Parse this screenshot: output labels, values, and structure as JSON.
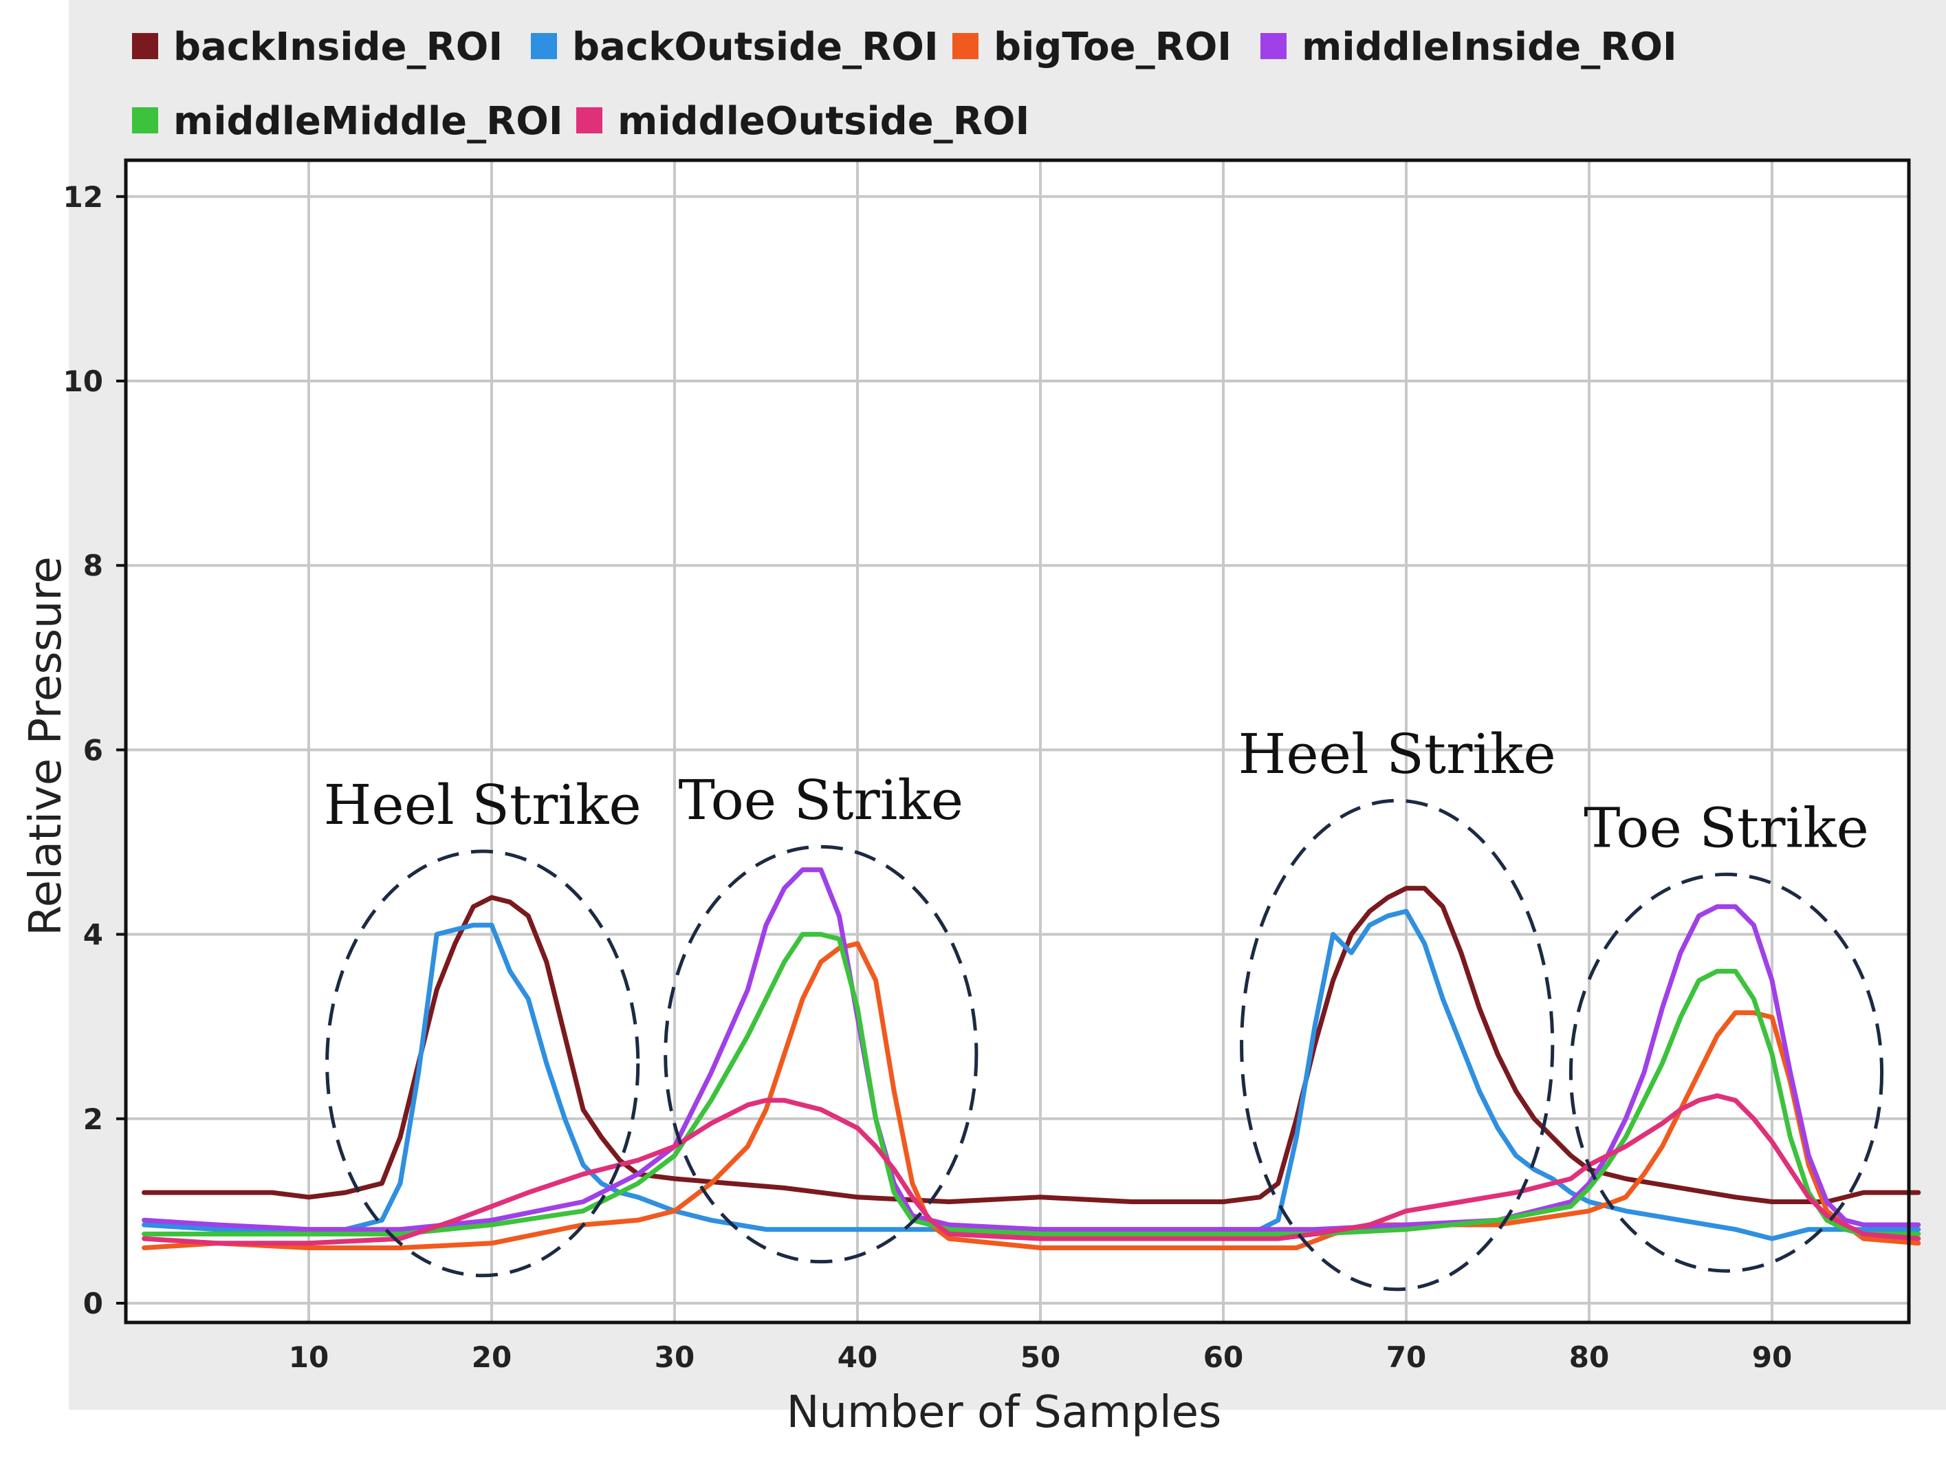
{
  "chart_data": {
    "type": "line",
    "title": "",
    "xlabel": "Number of Samples",
    "ylabel": "Relative Pressure",
    "xlim": [
      0,
      98
    ],
    "ylim": [
      0,
      12.2
    ],
    "xticks": [
      10,
      20,
      30,
      40,
      50,
      60,
      70,
      80,
      90
    ],
    "yticks": [
      0,
      2,
      4,
      6,
      8,
      10,
      12
    ],
    "grid": true,
    "legend_position": "top",
    "series": [
      {
        "name": "backInside_ROI",
        "color": "#7a1a1e",
        "x": [
          1,
          5,
          8,
          10,
          12,
          14,
          15,
          16,
          17,
          18,
          19,
          20,
          21,
          22,
          23,
          24,
          25,
          26,
          27,
          28,
          30,
          33,
          36,
          40,
          45,
          50,
          55,
          60,
          62,
          63,
          64,
          65,
          66,
          67,
          68,
          69,
          70,
          71,
          72,
          73,
          74,
          75,
          76,
          77,
          78,
          79,
          80,
          82,
          85,
          88,
          90,
          93,
          95,
          98
        ],
        "y": [
          1.2,
          1.2,
          1.2,
          1.15,
          1.2,
          1.3,
          1.8,
          2.6,
          3.4,
          3.9,
          4.3,
          4.4,
          4.35,
          4.2,
          3.7,
          2.9,
          2.1,
          1.8,
          1.55,
          1.4,
          1.35,
          1.3,
          1.25,
          1.15,
          1.1,
          1.15,
          1.1,
          1.1,
          1.15,
          1.3,
          2.0,
          2.8,
          3.5,
          4.0,
          4.25,
          4.4,
          4.5,
          4.5,
          4.3,
          3.8,
          3.2,
          2.7,
          2.3,
          2.0,
          1.8,
          1.6,
          1.45,
          1.35,
          1.25,
          1.15,
          1.1,
          1.1,
          1.2,
          1.2
        ]
      },
      {
        "name": "backOutside_ROI",
        "color": "#2f8fe0",
        "x": [
          1,
          5,
          8,
          12,
          14,
          15,
          16,
          17,
          18,
          19,
          20,
          21,
          22,
          23,
          24,
          25,
          26,
          27,
          28,
          30,
          32,
          35,
          40,
          45,
          50,
          55,
          60,
          62,
          63,
          64,
          65,
          66,
          67,
          68,
          69,
          70,
          71,
          72,
          73,
          74,
          75,
          76,
          77,
          78,
          79,
          80,
          82,
          85,
          88,
          90,
          92,
          95,
          98
        ],
        "y": [
          0.85,
          0.8,
          0.8,
          0.8,
          0.9,
          1.3,
          2.5,
          4.0,
          4.05,
          4.1,
          4.1,
          3.6,
          3.3,
          2.6,
          2.0,
          1.5,
          1.3,
          1.2,
          1.15,
          1.0,
          0.9,
          0.8,
          0.8,
          0.8,
          0.8,
          0.8,
          0.8,
          0.8,
          0.9,
          1.8,
          3.0,
          4.0,
          3.8,
          4.1,
          4.2,
          4.25,
          3.9,
          3.3,
          2.8,
          2.3,
          1.9,
          1.6,
          1.45,
          1.35,
          1.2,
          1.1,
          1.0,
          0.9,
          0.8,
          0.7,
          0.8,
          0.8,
          0.8
        ]
      },
      {
        "name": "bigToe_ROI",
        "color": "#f05a1e",
        "x": [
          1,
          5,
          10,
          15,
          20,
          25,
          28,
          30,
          32,
          34,
          35,
          36,
          37,
          38,
          39,
          40,
          41,
          42,
          43,
          44,
          45,
          50,
          55,
          60,
          64,
          66,
          68,
          70,
          75,
          80,
          82,
          83,
          84,
          85,
          86,
          87,
          88,
          89,
          90,
          91,
          92,
          93,
          95,
          98
        ],
        "y": [
          0.6,
          0.65,
          0.6,
          0.6,
          0.65,
          0.85,
          0.9,
          1.0,
          1.3,
          1.7,
          2.1,
          2.7,
          3.3,
          3.7,
          3.85,
          3.9,
          3.5,
          2.3,
          1.3,
          0.85,
          0.7,
          0.6,
          0.6,
          0.6,
          0.6,
          0.75,
          0.85,
          0.85,
          0.85,
          1.0,
          1.15,
          1.4,
          1.7,
          2.1,
          2.5,
          2.9,
          3.15,
          3.15,
          3.1,
          2.4,
          1.5,
          1.0,
          0.7,
          0.65
        ]
      },
      {
        "name": "middleInside_ROI",
        "color": "#a040e8",
        "x": [
          1,
          5,
          10,
          15,
          20,
          25,
          28,
          30,
          32,
          34,
          35,
          36,
          37,
          38,
          39,
          40,
          41,
          42,
          43,
          44,
          45,
          50,
          55,
          60,
          65,
          70,
          75,
          79,
          80,
          81,
          82,
          83,
          84,
          85,
          86,
          87,
          88,
          89,
          90,
          91,
          92,
          93,
          94,
          95,
          98
        ],
        "y": [
          0.9,
          0.85,
          0.8,
          0.8,
          0.9,
          1.1,
          1.4,
          1.7,
          2.5,
          3.4,
          4.1,
          4.5,
          4.7,
          4.7,
          4.2,
          3.1,
          2.0,
          1.3,
          0.95,
          0.9,
          0.85,
          0.8,
          0.8,
          0.8,
          0.8,
          0.85,
          0.9,
          1.1,
          1.3,
          1.6,
          2.0,
          2.5,
          3.2,
          3.8,
          4.2,
          4.3,
          4.3,
          4.1,
          3.5,
          2.5,
          1.6,
          1.1,
          0.9,
          0.85,
          0.85
        ]
      },
      {
        "name": "middleMiddle_ROI",
        "color": "#3cc23c",
        "x": [
          1,
          5,
          10,
          15,
          20,
          25,
          28,
          30,
          32,
          34,
          35,
          36,
          37,
          38,
          39,
          40,
          41,
          42,
          43,
          44,
          45,
          50,
          55,
          60,
          65,
          70,
          75,
          79,
          80,
          81,
          82,
          83,
          84,
          85,
          86,
          87,
          88,
          89,
          90,
          91,
          92,
          93,
          94,
          95,
          98
        ],
        "y": [
          0.75,
          0.75,
          0.75,
          0.75,
          0.85,
          1.0,
          1.3,
          1.6,
          2.2,
          2.9,
          3.3,
          3.7,
          4.0,
          4.0,
          3.95,
          3.2,
          2.0,
          1.2,
          0.9,
          0.85,
          0.8,
          0.75,
          0.75,
          0.75,
          0.75,
          0.8,
          0.9,
          1.05,
          1.25,
          1.5,
          1.8,
          2.2,
          2.6,
          3.1,
          3.5,
          3.6,
          3.6,
          3.3,
          2.7,
          1.8,
          1.2,
          0.9,
          0.8,
          0.75,
          0.75
        ]
      },
      {
        "name": "middleOutside_ROI",
        "color": "#e0307a",
        "x": [
          1,
          5,
          10,
          15,
          18,
          20,
          22,
          25,
          28,
          30,
          32,
          34,
          35,
          36,
          37,
          38,
          39,
          40,
          41,
          42,
          43,
          44,
          45,
          50,
          55,
          60,
          63,
          65,
          68,
          70,
          73,
          76,
          79,
          80,
          82,
          84,
          85,
          86,
          87,
          88,
          89,
          90,
          91,
          92,
          93,
          95,
          98
        ],
        "y": [
          0.7,
          0.65,
          0.65,
          0.7,
          0.9,
          1.05,
          1.2,
          1.4,
          1.55,
          1.7,
          1.95,
          2.15,
          2.2,
          2.2,
          2.15,
          2.1,
          2.0,
          1.9,
          1.7,
          1.45,
          1.15,
          0.9,
          0.75,
          0.7,
          0.7,
          0.7,
          0.7,
          0.75,
          0.85,
          1.0,
          1.1,
          1.2,
          1.35,
          1.5,
          1.7,
          1.95,
          2.1,
          2.2,
          2.25,
          2.2,
          2.0,
          1.75,
          1.45,
          1.15,
          0.95,
          0.75,
          0.7
        ]
      }
    ],
    "annotations": [
      {
        "text": "Heel Strike",
        "x": 19.5,
        "y": 2.6,
        "rx": 8.5,
        "ry_value": 2.3
      },
      {
        "text": "Toe Strike",
        "x": 38,
        "y": 2.7,
        "rx": 8.5,
        "ry_value": 2.25
      },
      {
        "text": "Heel Strike",
        "x": 69.5,
        "y": 2.8,
        "rx": 8.5,
        "ry_value": 2.65
      },
      {
        "text": "Toe Strike",
        "x": 87.5,
        "y": 2.5,
        "rx": 8.5,
        "ry_value": 2.15
      }
    ]
  }
}
